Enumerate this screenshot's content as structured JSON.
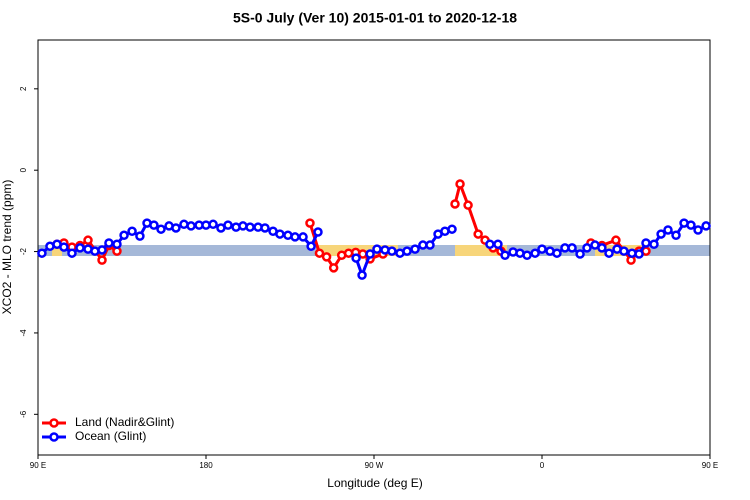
{
  "chart_data": {
    "type": "line",
    "title": "5S-0 July (Ver 10)   2015-01-01 to 2020-12-18",
    "xlabel": "Longitude (deg E)",
    "ylabel": "XCO2 - MLO trend (ppm)",
    "xlim": [
      90,
      450
    ],
    "xticks": [
      {
        "value": 90,
        "label": "90 E"
      },
      {
        "value": 180,
        "label": "180"
      },
      {
        "value": 270,
        "label": "90 W"
      },
      {
        "value": 360,
        "label": "0"
      },
      {
        "value": 450,
        "label": "90 E"
      }
    ],
    "ylim": [
      -7,
      3.2
    ],
    "yticks": [
      2,
      0,
      -2,
      -4,
      -6
    ],
    "legend": "bottom-left",
    "series": [
      {
        "name": "Land (Nadir&Glint)",
        "color": "#ff0000",
        "x": [
          100.2,
          103.9,
          108.2,
          112.5,
          116.8,
          124.3,
          128.0,
          132.3,
          180,
          235.7,
          240.8,
          244.6,
          248.4,
          252.7,
          256.4,
          260.2,
          264.0,
          267.9,
          274.8,
          300,
          313.4,
          316.1,
          320.4,
          325.8,
          329.5,
          333.8,
          338.0,
          360,
          386.2,
          392.1,
          399.6,
          407.7,
          412.0,
          415.7
        ],
        "values": [
          -1.82,
          -1.79,
          -1.89,
          -1.85,
          -1.72,
          -2.21,
          -1.85,
          -1.99,
          null,
          -1.3,
          -2.04,
          -2.13,
          -2.4,
          -2.09,
          -2.04,
          -2.02,
          -2.06,
          -2.18,
          -2.06,
          null,
          -0.83,
          -0.34,
          -0.86,
          -1.57,
          -1.72,
          -1.91,
          -1.99,
          null,
          -1.79,
          -1.85,
          -1.72,
          -2.21,
          -1.99,
          -1.99
        ]
      },
      {
        "name": "Ocean (Glint)",
        "color": "#0000ff",
        "x": [
          92.1,
          96.4,
          100.2,
          103.9,
          108.2,
          112.5,
          116.8,
          120.5,
          124.3,
          128.0,
          132.3,
          136.1,
          140.4,
          144.6,
          148.4,
          152.1,
          155.9,
          160.2,
          163.9,
          168.2,
          172.0,
          176.3,
          180.0,
          183.8,
          188.0,
          191.8,
          196.1,
          199.8,
          203.6,
          207.9,
          211.6,
          215.9,
          219.6,
          223.9,
          227.7,
          232.0,
          236.3,
          240.0,
          250,
          260.4,
          263.6,
          267.9,
          271.6,
          275.9,
          279.6,
          283.9,
          287.7,
          292.0,
          296.2,
          300.0,
          304.3,
          308.0,
          311.8,
          320,
          332.1,
          336.4,
          340.2,
          344.5,
          348.2,
          352.0,
          356.3,
          360.0,
          364.3,
          368.0,
          372.3,
          376.1,
          380.4,
          384.1,
          388.4,
          392.1,
          395.9,
          400.2,
          403.9,
          408.2,
          412.0,
          415.7,
          420.0,
          423.8,
          427.5,
          431.8,
          436.1,
          439.8,
          443.6,
          447.9
        ],
        "values": [
          -2.04,
          -1.87,
          -1.82,
          -1.89,
          -2.04,
          -1.91,
          -1.94,
          -1.99,
          -1.96,
          -1.79,
          -1.82,
          -1.6,
          -1.5,
          -1.62,
          -1.3,
          -1.35,
          -1.45,
          -1.37,
          -1.42,
          -1.33,
          -1.37,
          -1.35,
          -1.35,
          -1.33,
          -1.42,
          -1.35,
          -1.4,
          -1.37,
          -1.4,
          -1.4,
          -1.42,
          -1.5,
          -1.57,
          -1.6,
          -1.64,
          -1.64,
          -1.87,
          -1.52,
          null,
          -2.16,
          -2.58,
          -2.06,
          -1.94,
          -1.96,
          -1.99,
          -2.04,
          -1.99,
          -1.94,
          -1.84,
          -1.84,
          -1.57,
          -1.5,
          -1.45,
          null,
          -1.82,
          -1.82,
          -2.09,
          -2.01,
          -2.04,
          -2.09,
          -2.04,
          -1.94,
          -1.99,
          -2.04,
          -1.91,
          -1.91,
          -2.06,
          -1.91,
          -1.84,
          -1.91,
          -2.04,
          -1.94,
          -1.99,
          -2.04,
          -2.06,
          -1.79,
          -1.82,
          -1.57,
          -1.47,
          -1.6,
          -1.3,
          -1.35,
          -1.47,
          -1.37
        ]
      }
    ]
  }
}
